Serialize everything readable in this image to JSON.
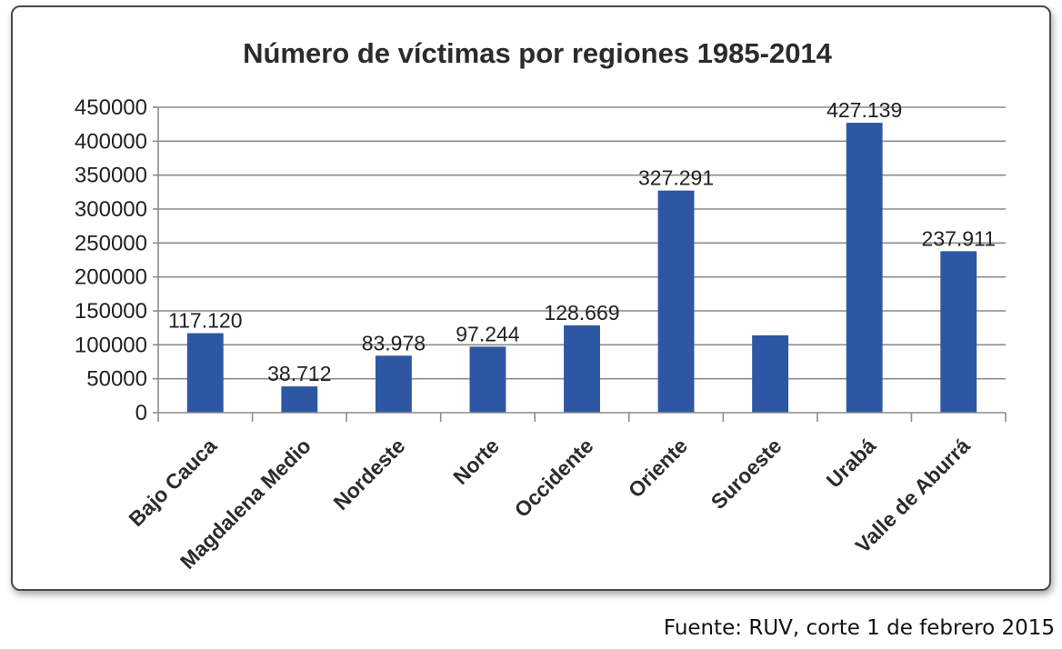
{
  "chart_data": {
    "type": "bar",
    "title": "Número de víctimas por regiones 1985-2014",
    "xlabel": "",
    "ylabel": "",
    "categories": [
      "Bajo Cauca",
      "Magdalena Medio",
      "Nordeste",
      "Norte",
      "Occidente",
      "Oriente",
      "Suroeste",
      "Urabá",
      "Valle de Aburrá"
    ],
    "values": [
      117120,
      38712,
      83978,
      97244,
      128669,
      327291,
      114000,
      427139,
      237911
    ],
    "data_labels": [
      "117.120",
      "38.712",
      "83.978",
      "97.244",
      "128.669",
      "327.291",
      "",
      "427.139",
      "237.911"
    ],
    "ylim": [
      0,
      450000
    ],
    "yticks": [
      0,
      50000,
      100000,
      150000,
      200000,
      250000,
      300000,
      350000,
      400000,
      450000
    ],
    "ytick_labels": [
      "0",
      "50000",
      "100000",
      "150000",
      "200000",
      "250000",
      "300000",
      "350000",
      "400000",
      "450000"
    ],
    "grid": true,
    "legend": "none",
    "bar_color": "#2E57A3"
  },
  "source_note": "Fuente: RUV, corte 1 de febrero 2015"
}
